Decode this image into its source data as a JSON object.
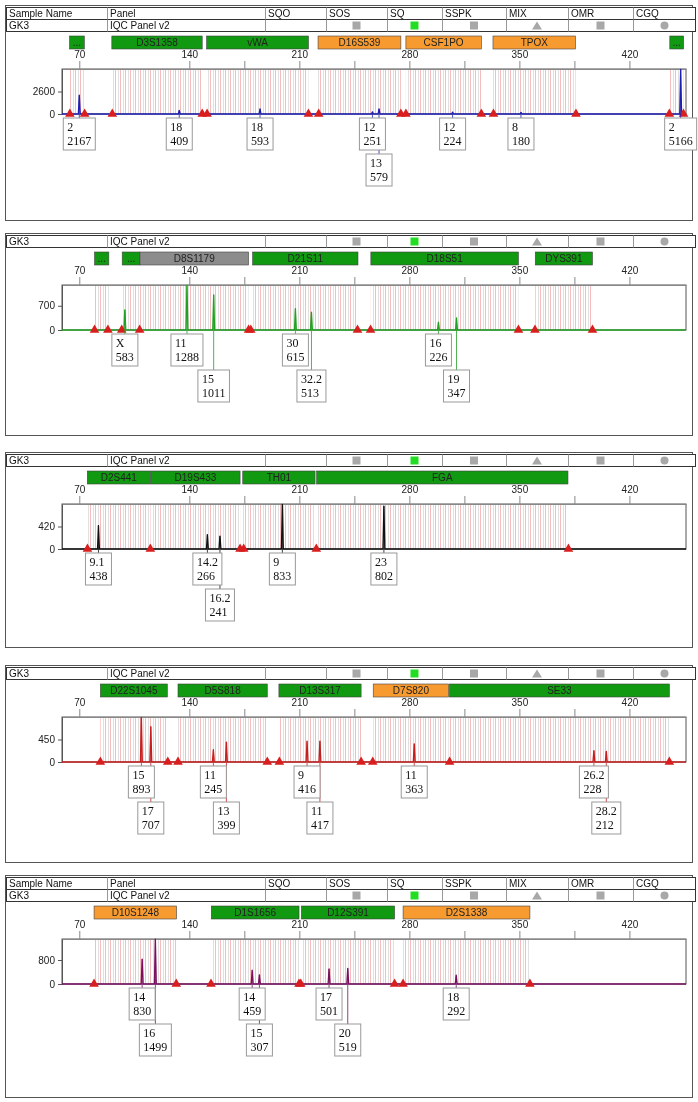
{
  "chart_data": [
    {
      "type": "line",
      "title": "GK3",
      "subtitle": "IQC Panel v2",
      "annotations": [
        "Sample Name",
        "Panel",
        "SQO",
        "SOS",
        "SQ",
        "SSPK",
        "MIX",
        "OMR",
        "CGQ",
        {
          "text": "2\n2167",
          "x": 70,
          "y": 2167
        },
        {
          "text": "18\n409",
          "x": 133.6,
          "y": 409
        },
        {
          "text": "18\n593",
          "x": 185,
          "y": 593
        },
        {
          "text": "12\n251",
          "x": 256.5,
          "y": 251
        },
        {
          "text": "13\n579",
          "x": 260.7,
          "y": 579
        },
        {
          "text": "12\n224",
          "x": 307.5,
          "y": 224
        },
        {
          "text": "8\n180",
          "x": 351,
          "y": 180
        },
        {
          "text": "2\n5166",
          "x": 452.6,
          "y": 5166
        }
      ],
      "xlim": [
        59,
        456
      ],
      "xticks": [
        70,
        140,
        {
          "value": 175,
          "label": null
        },
        210,
        {
          "value": 245,
          "label": null
        },
        280,
        {
          "value": 315,
          "label": null
        },
        350,
        {
          "value": 385,
          "label": null
        },
        420
      ],
      "ylim": [
        0,
        5200
      ],
      "yticks": [
        0,
        2600
      ],
      "bands": [
        {
          "axis": "x",
          "from": 63.8,
          "to": 73.2,
          "label": "...",
          "color": "#119911"
        },
        {
          "axis": "x",
          "from": 90.7,
          "to": 148.2,
          "label": "D3S1358",
          "color": "#119911"
        },
        {
          "axis": "x",
          "from": 151,
          "to": 215.8,
          "label": "vWA",
          "color": "#119911"
        },
        {
          "axis": "x",
          "from": 221.9,
          "to": 274.6,
          "label": "D16S539",
          "color": "#f79a30"
        },
        {
          "axis": "x",
          "from": 277.8,
          "to": 325.8,
          "label": "CSF1PO",
          "color": "#f79a30"
        },
        {
          "axis": "x",
          "from": 333.2,
          "to": 385.7,
          "label": "TPOX",
          "color": "#f79a30"
        },
        {
          "axis": "x",
          "from": 445.7,
          "to": 454.5,
          "label": "...",
          "color": "#119911"
        }
      ],
      "series": [
        {
          "color": "#1f1fb4",
          "x": [
            59,
            69.4,
            70,
            70.6,
            133,
            133.6,
            134.2,
            184.4,
            185,
            185.6,
            255.9,
            256.5,
            257.1,
            260.1,
            260.7,
            261.3,
            306.9,
            307.5,
            308.1,
            350.4,
            351,
            351.6,
            452,
            452.6,
            453.2,
            456
          ],
          "values": [
            0,
            0,
            2167,
            0,
            0,
            409,
            0,
            0,
            593,
            0,
            0,
            251,
            0,
            0,
            579,
            0,
            0,
            224,
            0,
            0,
            180,
            0,
            0,
            5166,
            0,
            0
          ]
        },
        {
          "type": "scatter",
          "marker": "triangle",
          "color": "#d81e1e",
          "x": [
            64,
            73.4,
            91,
            148.2,
            151.3,
            215.8,
            222.3,
            274.6,
            277.8,
            325.8,
            333.5,
            386,
            445.4,
            454.4
          ],
          "values": [
            0,
            0,
            0,
            0,
            0,
            0,
            0,
            0,
            0,
            0,
            0,
            0,
            0,
            0
          ]
        }
      ]
    },
    {
      "type": "line",
      "title": "GK3",
      "subtitle": "IQC Panel v2",
      "annotations": [
        {
          "text": "X\n583",
          "x": 99,
          "y": 583
        },
        {
          "text": "11\n1288",
          "x": 138.5,
          "y": 1288
        },
        {
          "text": "15\n1011",
          "x": 155.5,
          "y": 1011
        },
        {
          "text": "30\n615",
          "x": 207.5,
          "y": 615
        },
        {
          "text": "32.2\n513",
          "x": 217.7,
          "y": 513
        },
        {
          "text": "16\n226",
          "x": 298.5,
          "y": 226
        },
        {
          "text": "19\n347",
          "x": 310,
          "y": 347
        }
      ],
      "xlim": [
        59,
        456
      ],
      "xticks": [
        70,
        140,
        {
          "value": 175,
          "label": null
        },
        210,
        {
          "value": 245,
          "label": null
        },
        280,
        {
          "value": 315,
          "label": null
        },
        350,
        {
          "value": 385,
          "label": null
        },
        420
      ],
      "ylim": [
        0,
        1300
      ],
      "yticks": [
        0,
        700
      ],
      "bands": [
        {
          "axis": "x",
          "from": 79.7,
          "to": 88.8,
          "label": "...",
          "color": "#119911"
        },
        {
          "axis": "x",
          "from": 97.3,
          "to": 108.6,
          "label": "...",
          "color": "#119911"
        },
        {
          "axis": "x",
          "from": 108.6,
          "to": 177.7,
          "label": "D8S1179",
          "color": "#8c8c8c"
        },
        {
          "axis": "x",
          "from": 180.3,
          "to": 247.3,
          "label": "D21S11",
          "color": "#119911"
        },
        {
          "axis": "x",
          "from": 255.5,
          "to": 349.4,
          "label": "D18S51",
          "color": "#119911"
        },
        {
          "axis": "x",
          "from": 360.1,
          "to": 396.5,
          "label": "DYS391",
          "color": "#119911"
        }
      ],
      "series": [
        {
          "color": "#22a022",
          "x": [
            59,
            98.4,
            99,
            99.6,
            137.9,
            138.5,
            139.1,
            154.9,
            155.5,
            156.1,
            206.9,
            207.5,
            208.1,
            217.1,
            217.7,
            218.3,
            297.9,
            298.5,
            299.1,
            309.4,
            310,
            310.6,
            456
          ],
          "values": [
            0,
            0,
            583,
            0,
            0,
            1288,
            0,
            0,
            1011,
            0,
            0,
            615,
            0,
            0,
            513,
            0,
            0,
            226,
            0,
            0,
            347,
            0,
            0
          ]
        },
        {
          "type": "scatter",
          "marker": "triangle",
          "color": "#d81e1e",
          "x": [
            79.7,
            88.2,
            97,
            108.4,
            177.7,
            179.1,
            247,
            255.3,
            349.4,
            359.9,
            396.5
          ],
          "values": [
            0,
            0,
            0,
            0,
            0,
            0,
            0,
            0,
            0,
            0,
            0
          ]
        }
      ]
    },
    {
      "type": "line",
      "title": "GK3",
      "subtitle": "IQC Panel v2",
      "annotations": [
        {
          "text": "9.1\n438",
          "x": 82.2,
          "y": 438
        },
        {
          "text": "14.2\n266",
          "x": 151.5,
          "y": 266
        },
        {
          "text": "16.2\n241",
          "x": 159.5,
          "y": 241
        },
        {
          "text": "9\n833",
          "x": 199.2,
          "y": 833
        },
        {
          "text": "23\n802",
          "x": 263.8,
          "y": 802
        }
      ],
      "xlim": [
        59,
        456
      ],
      "xticks": [
        70,
        140,
        {
          "value": 175,
          "label": null
        },
        210,
        {
          "value": 245,
          "label": null
        },
        280,
        {
          "value": 315,
          "label": null
        },
        350,
        {
          "value": 385,
          "label": null
        },
        420
      ],
      "ylim": [
        0,
        840
      ],
      "yticks": [
        0,
        420
      ],
      "bands": [
        {
          "axis": "x",
          "from": 75.1,
          "to": 115.2,
          "label": "D2S441",
          "color": "#119911"
        },
        {
          "axis": "x",
          "from": 115.5,
          "to": 172.3,
          "label": "D19S433",
          "color": "#119911"
        },
        {
          "axis": "x",
          "from": 174,
          "to": 220,
          "label": "TH01",
          "color": "#119911"
        },
        {
          "axis": "x",
          "from": 221,
          "to": 380.9,
          "label": "FGA",
          "color": "#119911"
        }
      ],
      "series": [
        {
          "color": "#111111",
          "x": [
            59,
            81.6,
            82.2,
            82.8,
            150.9,
            151.5,
            152.1,
            158.9,
            159.5,
            160.1,
            198.6,
            199.2,
            199.8,
            263.2,
            263.8,
            264.4,
            456
          ],
          "values": [
            0,
            0,
            438,
            0,
            0,
            266,
            0,
            0,
            241,
            0,
            0,
            833,
            0,
            0,
            802,
            0,
            0
          ]
        },
        {
          "type": "scatter",
          "marker": "triangle",
          "color": "#d81e1e",
          "x": [
            75.2,
            115.2,
            172.3,
            174.6,
            220.8,
            381.2
          ],
          "values": [
            0,
            0,
            0,
            0,
            0,
            0
          ]
        }
      ]
    },
    {
      "type": "line",
      "title": "GK3",
      "subtitle": "IQC Panel v2",
      "annotations": [
        {
          "text": "15\n893",
          "x": 109.5,
          "y": 893
        },
        {
          "text": "17\n707",
          "x": 115.5,
          "y": 707
        },
        {
          "text": "11\n245",
          "x": 155.3,
          "y": 245
        },
        {
          "text": "13\n399",
          "x": 163.6,
          "y": 399
        },
        {
          "text": "9\n416",
          "x": 214.9,
          "y": 416
        },
        {
          "text": "11\n417",
          "x": 223.1,
          "y": 417
        },
        {
          "text": "11\n363",
          "x": 283.1,
          "y": 363
        },
        {
          "text": "26.2\n228",
          "x": 397.4,
          "y": 228
        },
        {
          "text": "28.2\n212",
          "x": 405.3,
          "y": 212
        }
      ],
      "xlim": [
        59,
        456
      ],
      "xticks": [
        70,
        140,
        {
          "value": 175,
          "label": null
        },
        210,
        {
          "value": 245,
          "label": null
        },
        280,
        {
          "value": 315,
          "label": null
        },
        350,
        {
          "value": 385,
          "label": null
        },
        420
      ],
      "ylim": [
        0,
        900
      ],
      "yticks": [
        0,
        450
      ],
      "bands": [
        {
          "axis": "x",
          "from": 83.4,
          "to": 126,
          "label": "D22S1045",
          "color": "#119911"
        },
        {
          "axis": "x",
          "from": 132.8,
          "to": 189.6,
          "label": "D5S818",
          "color": "#119911"
        },
        {
          "axis": "x",
          "from": 197,
          "to": 249.3,
          "label": "D13S317",
          "color": "#119911"
        },
        {
          "axis": "x",
          "from": 257,
          "to": 305,
          "label": "D7S820",
          "color": "#f79a30"
        },
        {
          "axis": "x",
          "from": 305.5,
          "to": 445.4,
          "label": "SE33",
          "color": "#119911"
        }
      ],
      "series": [
        {
          "color": "#c81e1e",
          "x": [
            59,
            108.9,
            109.5,
            110.1,
            114.9,
            115.5,
            116.1,
            154.7,
            155.3,
            155.9,
            163,
            163.6,
            164.2,
            214.3,
            214.9,
            215.5,
            222.5,
            223.1,
            223.7,
            282.5,
            283.1,
            283.7,
            396.8,
            397.4,
            398,
            404.7,
            405.3,
            405.9,
            456
          ],
          "values": [
            0,
            0,
            893,
            0,
            0,
            707,
            0,
            0,
            245,
            0,
            0,
            399,
            0,
            0,
            416,
            0,
            0,
            417,
            0,
            0,
            363,
            0,
            0,
            228,
            0,
            0,
            212,
            0,
            0
          ]
        },
        {
          "type": "scatter",
          "marker": "triangle",
          "color": "#d81e1e",
          "x": [
            83.4,
            126.3,
            132.8,
            189.6,
            197.3,
            249.3,
            256.7,
            305.6,
            445.4
          ],
          "values": [
            0,
            0,
            0,
            0,
            0,
            0,
            0,
            0,
            0
          ]
        }
      ]
    },
    {
      "type": "line",
      "title": "GK3",
      "subtitle": "IQC Panel v2",
      "annotations": [
        "Sample Name",
        "Panel",
        "SQO",
        "SOS",
        "SQ",
        "SSPK",
        "MIX",
        "OMR",
        "CGQ",
        {
          "text": "14\n830",
          "x": 110,
          "y": 830
        },
        {
          "text": "16\n1499",
          "x": 118.4,
          "y": 1499
        },
        {
          "text": "14\n459",
          "x": 180,
          "y": 459
        },
        {
          "text": "15\n307",
          "x": 184.6,
          "y": 307
        },
        {
          "text": "17\n501",
          "x": 228.9,
          "y": 501
        },
        {
          "text": "20\n519",
          "x": 240.8,
          "y": 519
        },
        {
          "text": "18\n292",
          "x": 309.8,
          "y": 292
        }
      ],
      "xlim": [
        59,
        456
      ],
      "xticks": [
        70,
        140,
        {
          "value": 175,
          "label": null
        },
        210,
        {
          "value": 245,
          "label": null
        },
        280,
        {
          "value": 315,
          "label": null
        },
        350,
        {
          "value": 385,
          "label": null
        },
        420
      ],
      "ylim": [
        0,
        1500
      ],
      "yticks": [
        0,
        800
      ],
      "bands": [
        {
          "axis": "x",
          "from": 79.4,
          "to": 131.9,
          "label": "D10S1248",
          "color": "#f79a30"
        },
        {
          "axis": "x",
          "from": 154,
          "to": 209.8,
          "label": "D1S1656",
          "color": "#119911"
        },
        {
          "axis": "x",
          "from": 211.3,
          "to": 270.6,
          "label": "D12S391",
          "color": "#119911"
        },
        {
          "axis": "x",
          "from": 276,
          "to": 356.7,
          "label": "D2S1338",
          "color": "#f79a30"
        }
      ],
      "series": [
        {
          "color": "#7a1060",
          "x": [
            59,
            109.4,
            110,
            110.6,
            117.8,
            118.4,
            119,
            179.4,
            180,
            180.6,
            184,
            184.6,
            185.2,
            228.3,
            228.9,
            229.5,
            240.2,
            240.8,
            241.4,
            309.2,
            309.8,
            310.4,
            456
          ],
          "values": [
            0,
            0,
            830,
            0,
            0,
            1499,
            0,
            0,
            459,
            0,
            0,
            307,
            0,
            0,
            501,
            0,
            0,
            519,
            0,
            0,
            292,
            0,
            0
          ]
        },
        {
          "type": "scatter",
          "marker": "triangle",
          "color": "#d81e1e",
          "x": [
            79.4,
            131.7,
            153.8,
            209.8,
            210.9,
            270.6,
            276,
            356.7
          ],
          "values": [
            0,
            0,
            0,
            0,
            0,
            0,
            0,
            0
          ]
        }
      ]
    }
  ]
}
